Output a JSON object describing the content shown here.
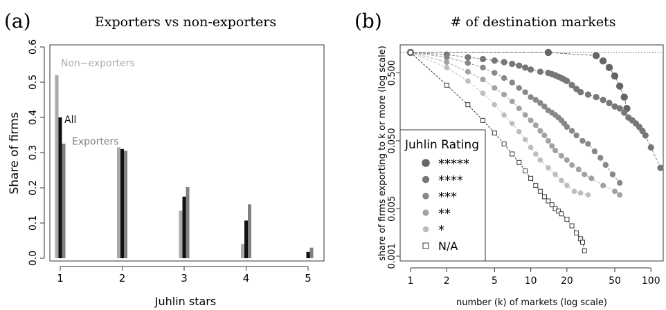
{
  "panel_a": {
    "letter": "(a)",
    "chart_data": {
      "type": "bar",
      "title": "Exporters vs non-exporters",
      "xlabel": "Juhlin stars",
      "ylabel": "Share of firms",
      "categories": [
        "1",
        "2",
        "3",
        "4",
        "5"
      ],
      "ylim": [
        0,
        0.6
      ],
      "yticks": [
        "0.0",
        "0.1",
        "0.2",
        "0.3",
        "0.4",
        "0.5",
        "0.6"
      ],
      "series": [
        {
          "name": "Non−exporters",
          "color": "#aaaaaa",
          "values": [
            0.52,
            0.315,
            0.135,
            0.04,
            0.0
          ]
        },
        {
          "name": "All",
          "color": "#111111",
          "values": [
            0.4,
            0.31,
            0.175,
            0.107,
            0.018
          ]
        },
        {
          "name": "Exporters",
          "color": "#808080",
          "values": [
            0.325,
            0.305,
            0.202,
            0.153,
            0.03
          ]
        }
      ],
      "grid": false,
      "legend": "inline labels"
    }
  },
  "panel_b": {
    "letter": "(b)",
    "chart_data": {
      "type": "line",
      "title": "# of destination markets",
      "xlabel": "number (k) of markets (log scale)",
      "ylabel": "share of firms exporting to k or more (log scale)",
      "xscale": "log",
      "yscale": "log",
      "xlim": [
        1,
        120
      ],
      "ylim": [
        0.001,
        1
      ],
      "xticks": [
        "1",
        "2",
        "5",
        "10",
        "20",
        "50",
        "100"
      ],
      "yticks": [
        "0.001",
        "0.005",
        "0.050",
        "0.500"
      ],
      "reference_line": 1,
      "grid": false,
      "legend_title": "Juhlin Rating",
      "legend": "left",
      "series": [
        {
          "name": "*****",
          "color": "#666666",
          "marker": "circle",
          "size": 5.2,
          "x": [
            1,
            14,
            35,
            40,
            45,
            50,
            55,
            60,
            63
          ],
          "y": [
            1,
            1,
            0.9,
            0.75,
            0.6,
            0.45,
            0.32,
            0.22,
            0.15
          ]
        },
        {
          "name": "****",
          "color": "#777777",
          "marker": "circle",
          "size": 4.6,
          "x": [
            1,
            2,
            3,
            4,
            5,
            6,
            7,
            8,
            9,
            10,
            12,
            14,
            15,
            16,
            17,
            18,
            19,
            20,
            22,
            24,
            26,
            30,
            35,
            40,
            45,
            50,
            55,
            60,
            65,
            70,
            75,
            80,
            85,
            90,
            100,
            120
          ],
          "y": [
            1,
            0.93,
            0.85,
            0.8,
            0.76,
            0.72,
            0.68,
            0.64,
            0.6,
            0.56,
            0.52,
            0.5,
            0.48,
            0.46,
            0.44,
            0.42,
            0.4,
            0.38,
            0.33,
            0.29,
            0.26,
            0.24,
            0.22,
            0.2,
            0.18,
            0.16,
            0.15,
            0.13,
            0.11,
            0.1,
            0.09,
            0.08,
            0.07,
            0.06,
            0.04,
            0.02
          ]
        },
        {
          "name": "***",
          "color": "#888888",
          "marker": "circle",
          "size": 4.2,
          "x": [
            1,
            2,
            3,
            4,
            5,
            6,
            7,
            8,
            9,
            10,
            11,
            12,
            13,
            14,
            15,
            16,
            17,
            18,
            19,
            20,
            22,
            24,
            27,
            30,
            34,
            38,
            42,
            48,
            55
          ],
          "y": [
            1,
            0.85,
            0.7,
            0.6,
            0.5,
            0.42,
            0.36,
            0.3,
            0.26,
            0.22,
            0.2,
            0.18,
            0.16,
            0.14,
            0.13,
            0.12,
            0.11,
            0.1,
            0.09,
            0.08,
            0.07,
            0.06,
            0.05,
            0.045,
            0.035,
            0.028,
            0.022,
            0.016,
            0.012
          ]
        },
        {
          "name": "**",
          "color": "#a2a2a2",
          "marker": "circle",
          "size": 4,
          "x": [
            1,
            2,
            3,
            4,
            5,
            6,
            7,
            8,
            9,
            10,
            11,
            12,
            13,
            14,
            15,
            16,
            18,
            20,
            22,
            25,
            28,
            32,
            40,
            50,
            55
          ],
          "y": [
            1,
            0.72,
            0.52,
            0.4,
            0.3,
            0.24,
            0.19,
            0.15,
            0.12,
            0.1,
            0.085,
            0.07,
            0.06,
            0.05,
            0.042,
            0.036,
            0.03,
            0.026,
            0.022,
            0.019,
            0.016,
            0.014,
            0.011,
            0.009,
            0.008
          ]
        },
        {
          "name": "*",
          "color": "#bdbdbd",
          "marker": "circle",
          "size": 3.8,
          "x": [
            1,
            2,
            3,
            4,
            5,
            6,
            7,
            8,
            9,
            10,
            11,
            12,
            14,
            16,
            18,
            20,
            23,
            26,
            30
          ],
          "y": [
            1,
            0.6,
            0.38,
            0.25,
            0.17,
            0.12,
            0.09,
            0.068,
            0.052,
            0.04,
            0.032,
            0.026,
            0.02,
            0.016,
            0.013,
            0.011,
            0.009,
            0.0085,
            0.008
          ]
        },
        {
          "name": "N/A",
          "color": "#333333",
          "marker": "open-square",
          "size": 3,
          "x": [
            1,
            2,
            3,
            4,
            5,
            6,
            7,
            8,
            9,
            10,
            11,
            12,
            13,
            14,
            15,
            16,
            17,
            18,
            20,
            22,
            24,
            26,
            27,
            28
          ],
          "y": [
            1,
            0.33,
            0.17,
            0.1,
            0.065,
            0.045,
            0.032,
            0.024,
            0.018,
            0.014,
            0.011,
            0.009,
            0.0075,
            0.0065,
            0.0057,
            0.005,
            0.0046,
            0.0042,
            0.0035,
            0.0028,
            0.0022,
            0.0018,
            0.0016,
            0.0012
          ]
        }
      ]
    }
  }
}
